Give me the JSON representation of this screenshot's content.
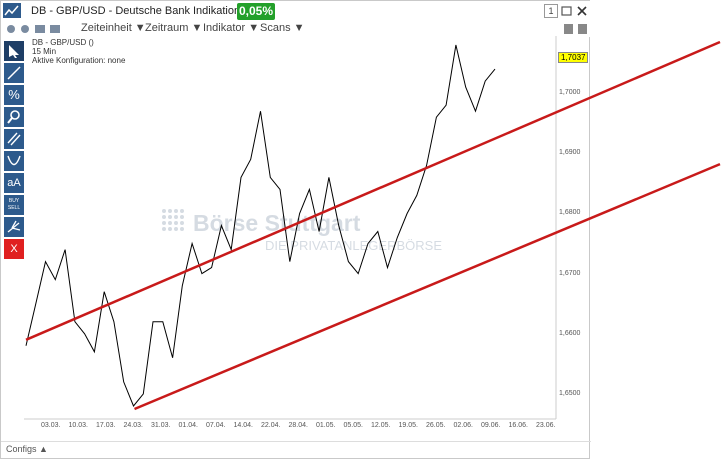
{
  "window": {
    "title": "DB - GBP/USD - Deutsche Bank Indikation",
    "change": "0,05%",
    "tab_number": "1",
    "change_color": "#23a02a"
  },
  "menu": [
    {
      "label": "Zeiteinheit ▼"
    },
    {
      "label": "Zeitraum ▼"
    },
    {
      "label": "Indikator ▼"
    },
    {
      "label": "Scans ▼"
    }
  ],
  "toolbar": [
    {
      "name": "cursor-tool-icon",
      "label": ""
    },
    {
      "name": "line-tool-icon",
      "label": ""
    },
    {
      "name": "percent-tool-icon",
      "label": "%"
    },
    {
      "name": "zoom-tool-icon",
      "label": ""
    },
    {
      "name": "parallel-lines-tool-icon",
      "label": ""
    },
    {
      "name": "curve-tool-icon",
      "label": ""
    },
    {
      "name": "text-tool-icon",
      "label": "aA"
    },
    {
      "name": "buy-sell-tool-icon",
      "label": "BUY SELL"
    },
    {
      "name": "fork-tool-icon",
      "label": ""
    },
    {
      "name": "delete-tool-icon",
      "label": "X"
    }
  ],
  "info": {
    "symbol": "DB - GBP/USD ()",
    "interval": "15 Min",
    "config": "Aktive Konfiguration: none"
  },
  "watermark": {
    "main": "Börse Stuttgart",
    "sub": "DIE PRIVATANLEGERBÖRSE"
  },
  "footer": {
    "label": "Configs ▲"
  },
  "chart_data": {
    "type": "line",
    "last_price": "1,7037",
    "y_tick_labels": [
      "1,7000",
      "1,6900",
      "1,6800",
      "1,6700",
      "1,6600",
      "1,6500"
    ],
    "y_ticks": [
      1.7,
      1.69,
      1.68,
      1.67,
      1.66,
      1.65
    ],
    "ylim": [
      1.646,
      1.7095
    ],
    "x_tick_labels": [
      "03.03.",
      "10.03.",
      "17.03.",
      "24.03.",
      "31.03.",
      "01.04.",
      "07.04.",
      "14.04.",
      "22.04.",
      "28.04.",
      "01.05.",
      "05.05.",
      "12.05.",
      "19.05.",
      "26.05.",
      "02.06.",
      "09.06.",
      "16.06.",
      "23.06."
    ],
    "series": [
      {
        "values": [
          1.658,
          1.665,
          1.672,
          1.669,
          1.674,
          1.662,
          1.66,
          1.657,
          1.667,
          1.662,
          1.652,
          1.648,
          1.65,
          1.662,
          1.662,
          1.656,
          1.668,
          1.675,
          1.67,
          1.671,
          1.678,
          1.674,
          1.686,
          1.689,
          1.697,
          1.686,
          1.684,
          1.672,
          1.68,
          1.684,
          1.677,
          1.686,
          1.678,
          1.672,
          1.67,
          1.675,
          1.677,
          1.671,
          1.676,
          1.68,
          1.683,
          1.688,
          1.696,
          1.698,
          1.708,
          1.701,
          1.697,
          1.702,
          1.704
        ],
        "color": "#000000"
      }
    ],
    "trendlines": [
      {
        "from": [
          "01.03.",
          1.659
        ],
        "to": [
          "27.06.",
          1.7085
        ],
        "color": "#c81a1a"
      },
      {
        "from": [
          "24.03.",
          1.6475
        ],
        "to": [
          "27.06.",
          1.6882
        ],
        "color": "#c81a1a"
      }
    ]
  }
}
